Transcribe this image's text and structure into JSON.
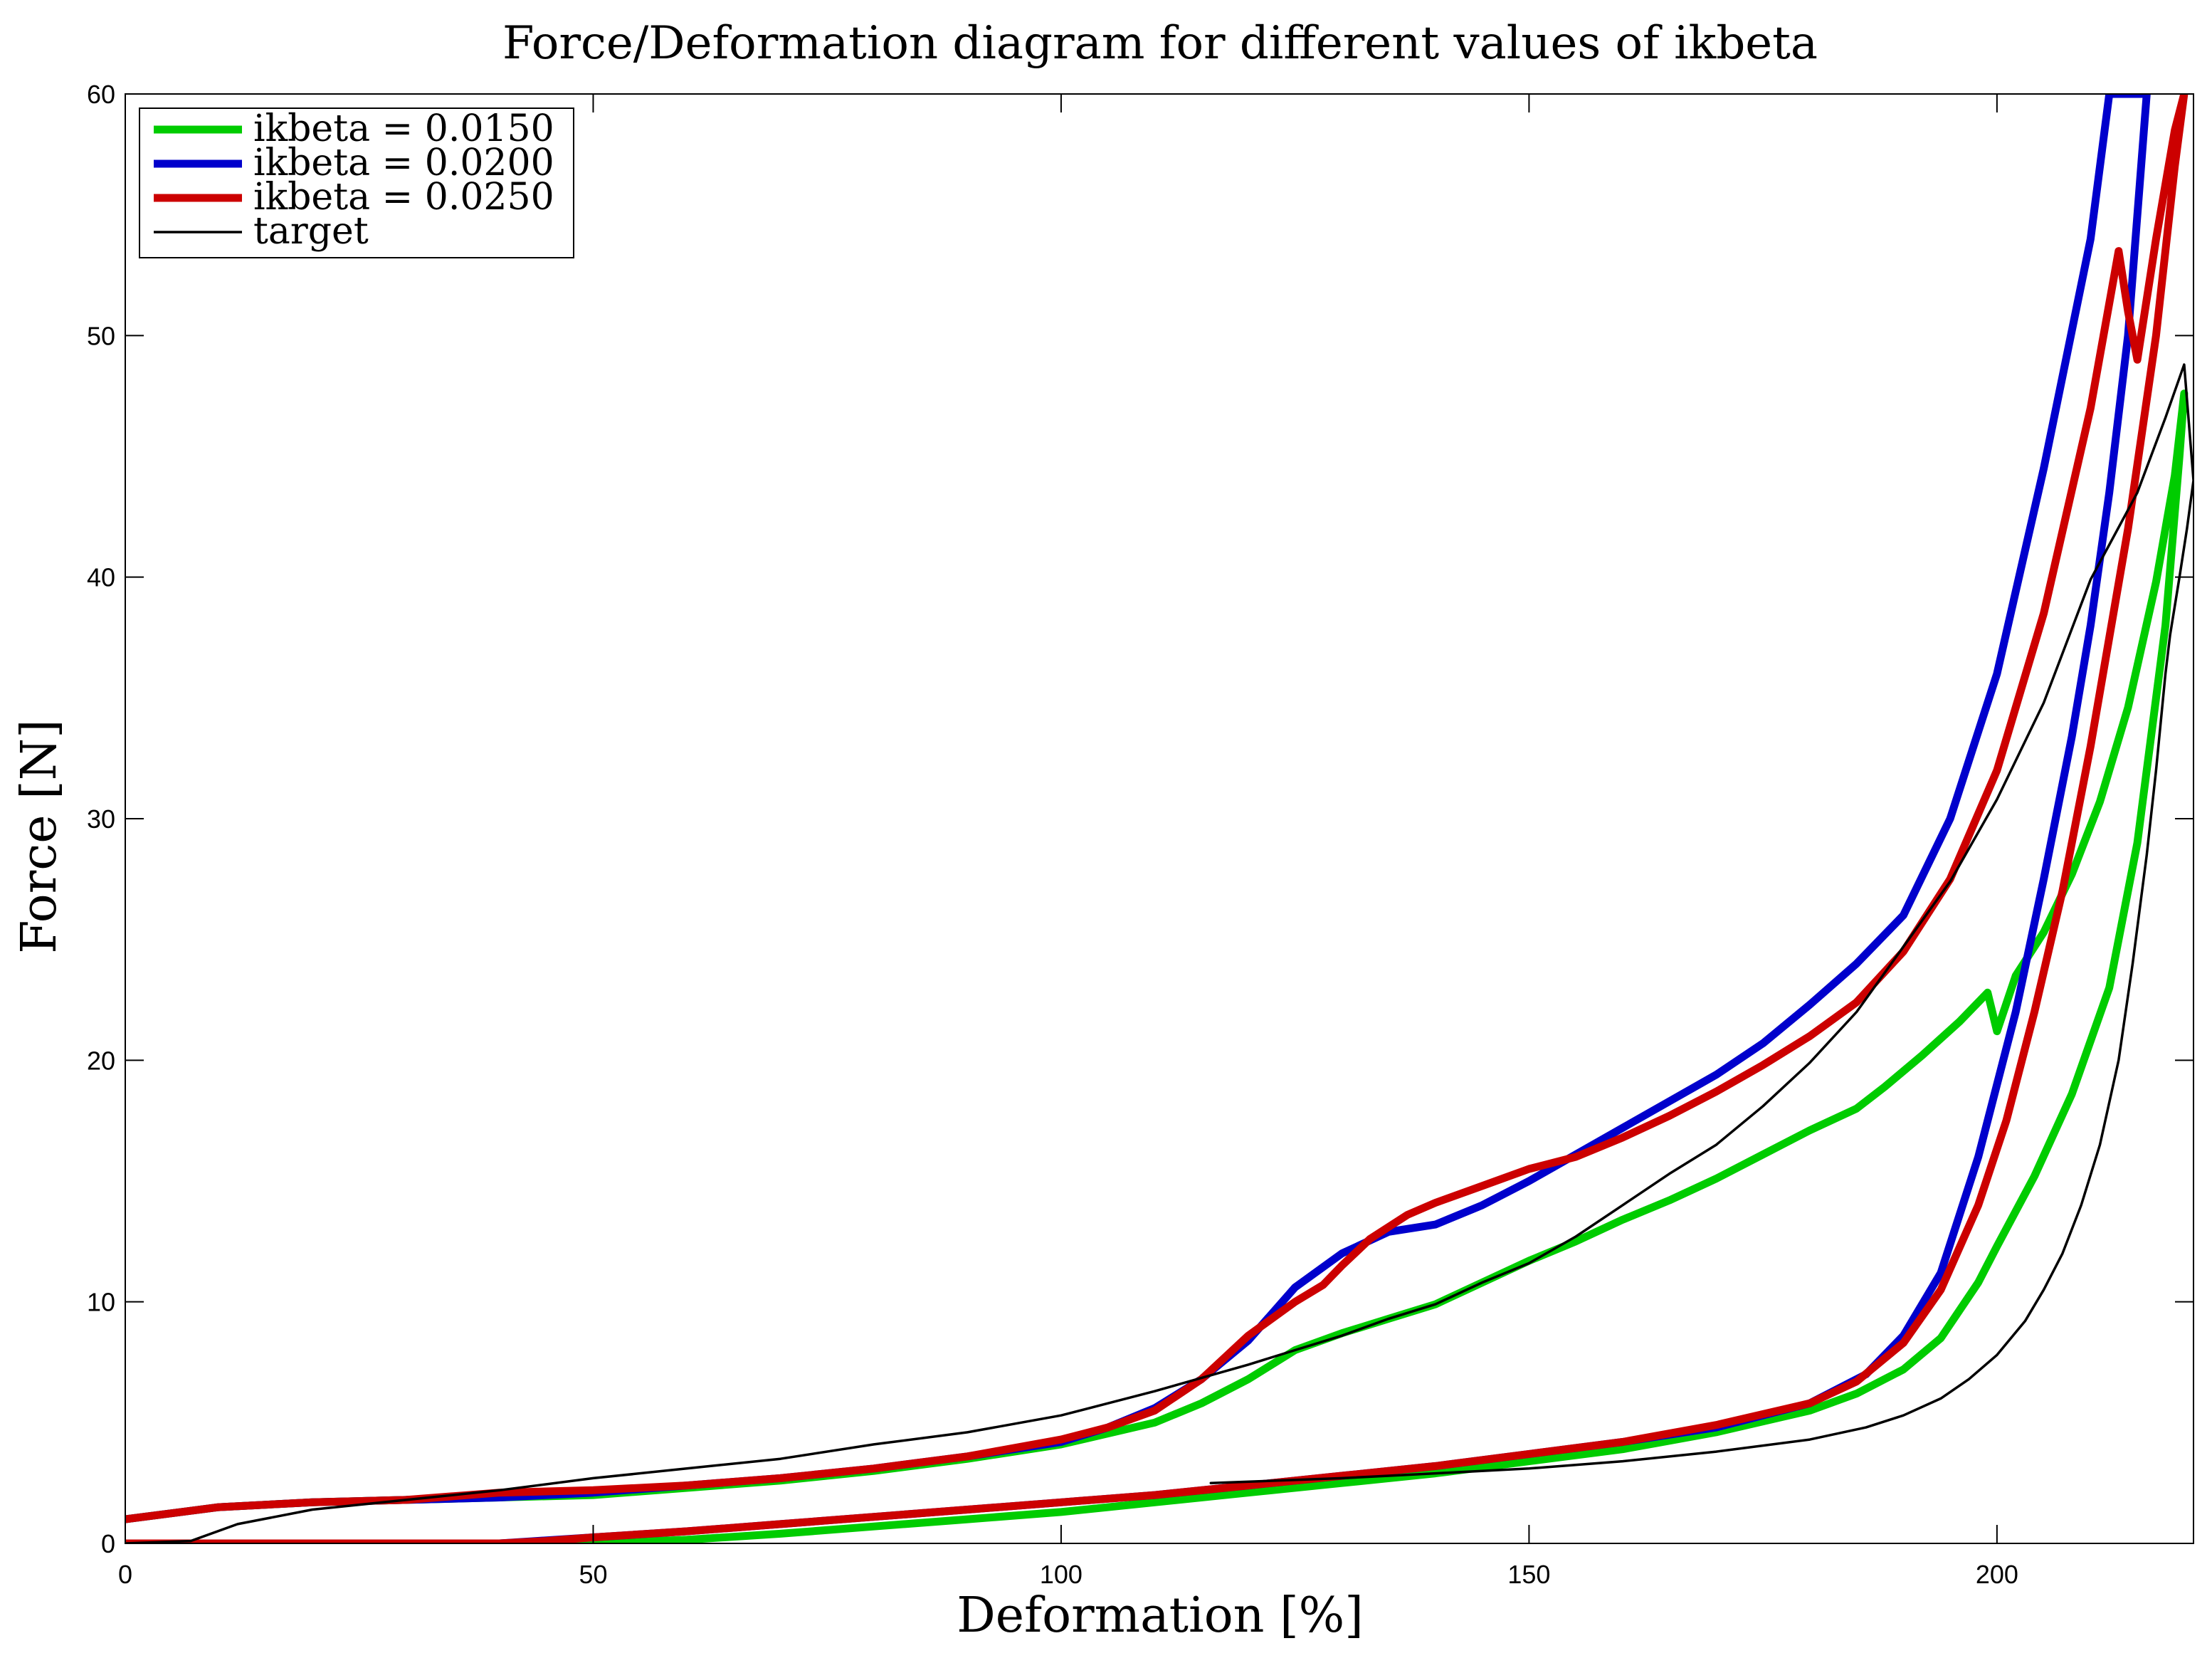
{
  "chart_data": {
    "type": "line",
    "title": "Force/Deformation diagram for different values of ikbeta",
    "xlabel": "Deformation [%]",
    "ylabel": "Force [N]",
    "xlim": [
      0,
      221
    ],
    "ylim": [
      0,
      60
    ],
    "xticks": [
      0,
      50,
      100,
      150,
      200
    ],
    "yticks": [
      0,
      10,
      20,
      30,
      40,
      50,
      60
    ],
    "grid": false,
    "legend_position": "top-left",
    "series": [
      {
        "name": "ikbeta = 0.0150",
        "color": "#00cc00",
        "line_width": "thick",
        "x": [
          0,
          10,
          20,
          30,
          40,
          50,
          60,
          70,
          80,
          90,
          100,
          110,
          115,
          120,
          125,
          130,
          135,
          140,
          145,
          150,
          155,
          160,
          165,
          170,
          175,
          180,
          185,
          188,
          192,
          196,
          199,
          200,
          202,
          205,
          208,
          211,
          214,
          217,
          219,
          220,
          219.5,
          218,
          215,
          212,
          208,
          204,
          200,
          198,
          194,
          190,
          185,
          180,
          170,
          160,
          150,
          140,
          130,
          120,
          110,
          100,
          90,
          80,
          70,
          60,
          50,
          45,
          40,
          20,
          0
        ],
        "values": [
          1.0,
          1.5,
          1.7,
          1.8,
          1.9,
          2.0,
          2.3,
          2.6,
          3.0,
          3.5,
          4.1,
          5.0,
          5.8,
          6.8,
          8.0,
          8.7,
          9.3,
          9.9,
          10.8,
          11.7,
          12.5,
          13.4,
          14.2,
          15.1,
          16.1,
          17.1,
          18.0,
          18.9,
          20.2,
          21.6,
          22.8,
          21.2,
          23.5,
          25.3,
          27.7,
          30.7,
          34.6,
          39.8,
          44.2,
          47.6,
          45.0,
          38.0,
          29.0,
          23.0,
          18.6,
          15.2,
          12.3,
          10.8,
          8.5,
          7.2,
          6.2,
          5.5,
          4.6,
          3.9,
          3.4,
          2.9,
          2.5,
          2.1,
          1.7,
          1.3,
          1.0,
          0.7,
          0.4,
          0.15,
          0.0,
          0.0,
          0.0,
          0.0,
          0.0
        ]
      },
      {
        "name": "ikbeta = 0.0200",
        "color": "#0000cc",
        "line_width": "thick",
        "x": [
          0,
          10,
          20,
          30,
          40,
          50,
          60,
          70,
          80,
          90,
          100,
          105,
          110,
          115,
          120,
          125,
          130,
          135,
          140,
          145,
          150,
          155,
          160,
          165,
          170,
          175,
          180,
          185,
          190,
          195,
          200,
          205,
          210,
          212,
          215,
          216,
          214,
          212,
          210,
          208,
          205,
          202,
          198,
          194,
          190,
          186,
          180,
          170,
          160,
          150,
          140,
          130,
          120,
          110,
          100,
          90,
          80,
          70,
          60,
          50,
          40,
          20,
          0
        ],
        "values": [
          1.0,
          1.5,
          1.7,
          1.8,
          1.9,
          2.1,
          2.4,
          2.7,
          3.1,
          3.6,
          4.2,
          4.8,
          5.6,
          6.8,
          8.4,
          10.6,
          12.0,
          12.9,
          13.2,
          14.0,
          15.0,
          16.1,
          17.2,
          18.3,
          19.4,
          20.7,
          22.3,
          24.0,
          26.0,
          30.0,
          36.0,
          44.5,
          54.0,
          60.0,
          60.0,
          60.0,
          50.0,
          43.5,
          38.0,
          33.4,
          27.5,
          22.0,
          16.0,
          11.2,
          8.6,
          7.0,
          5.8,
          4.8,
          4.2,
          3.7,
          3.2,
          2.8,
          2.4,
          2.0,
          1.7,
          1.4,
          1.1,
          0.8,
          0.5,
          0.25,
          0.0,
          0.0,
          0.0
        ]
      },
      {
        "name": "ikbeta = 0.0250",
        "color": "#cc0000",
        "line_width": "thick",
        "x": [
          0,
          10,
          20,
          30,
          40,
          50,
          60,
          70,
          80,
          90,
          100,
          105,
          110,
          115,
          120,
          125,
          128,
          130,
          133,
          137,
          140,
          145,
          150,
          155,
          160,
          165,
          170,
          175,
          180,
          185,
          190,
          195,
          200,
          205,
          210,
          213,
          214,
          215,
          217,
          219,
          220,
          219,
          217,
          214,
          210,
          207,
          204,
          201,
          198,
          194,
          190,
          185,
          180,
          170,
          160,
          150,
          140,
          130,
          120,
          110,
          100,
          90,
          80,
          70,
          60,
          50,
          45,
          40,
          20,
          0
        ],
        "values": [
          1.0,
          1.5,
          1.7,
          1.8,
          2.1,
          2.2,
          2.4,
          2.7,
          3.1,
          3.6,
          4.3,
          4.8,
          5.5,
          6.8,
          8.6,
          10.0,
          10.7,
          11.5,
          12.6,
          13.6,
          14.1,
          14.8,
          15.5,
          16.0,
          16.8,
          17.7,
          18.7,
          19.8,
          21.0,
          22.4,
          24.5,
          27.5,
          32.0,
          38.5,
          47.0,
          53.5,
          51.0,
          49.0,
          54.0,
          58.5,
          60.0,
          57.0,
          50.0,
          42.0,
          33.0,
          27.0,
          22.0,
          17.5,
          14.0,
          10.5,
          8.3,
          6.7,
          5.8,
          4.9,
          4.2,
          3.7,
          3.2,
          2.8,
          2.4,
          2.0,
          1.7,
          1.4,
          1.1,
          0.8,
          0.5,
          0.25,
          0.1,
          0.0,
          0.0,
          0.0
        ]
      },
      {
        "name": "target",
        "color": "#000000",
        "line_width": "thin",
        "x": [
          0,
          7,
          12,
          20,
          30,
          40,
          50,
          60,
          70,
          80,
          90,
          100,
          110,
          120,
          125,
          130,
          135,
          140,
          145,
          150,
          155,
          160,
          165,
          170,
          175,
          180,
          185,
          190,
          195,
          200,
          205,
          210,
          215,
          218,
          220,
          221,
          220.3,
          219.5,
          218.5,
          218,
          217,
          216,
          214.5,
          213,
          211,
          209,
          207,
          205,
          203,
          200,
          197,
          194,
          190,
          186,
          180,
          170,
          160,
          150,
          140,
          130,
          116
        ],
        "values": [
          0.0,
          0.1,
          0.8,
          1.4,
          1.8,
          2.2,
          2.7,
          3.1,
          3.5,
          4.1,
          4.6,
          5.3,
          6.3,
          7.4,
          8.0,
          8.6,
          9.3,
          9.9,
          10.8,
          11.6,
          12.7,
          14.0,
          15.3,
          16.5,
          18.1,
          19.9,
          22.0,
          24.7,
          27.4,
          30.8,
          34.8,
          39.9,
          43.5,
          46.6,
          48.8,
          44.0,
          42.0,
          40.0,
          37.6,
          36.0,
          32.0,
          28.5,
          24.0,
          20.0,
          16.5,
          14.0,
          12.0,
          10.5,
          9.2,
          7.8,
          6.8,
          6.0,
          5.3,
          4.8,
          4.3,
          3.8,
          3.4,
          3.1,
          2.9,
          2.7,
          2.5
        ]
      }
    ]
  }
}
